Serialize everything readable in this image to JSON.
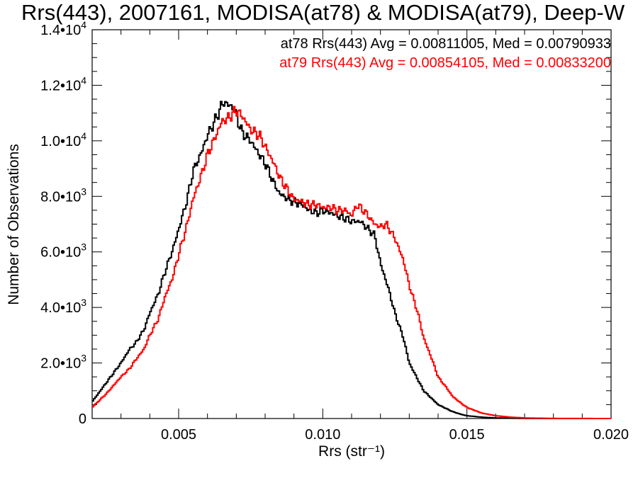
{
  "chart_data": {
    "type": "line",
    "title": "Rrs(443), 2007161, MODISA(at78) & MODISA(at79), Deep-W",
    "xlabel": "Rrs (str⁻¹)",
    "ylabel": "Number of Observations",
    "xlim": [
      0.002,
      0.02
    ],
    "ylim": [
      0,
      14000
    ],
    "x_ticks": [
      0.005,
      0.01,
      0.015,
      0.02
    ],
    "x_tick_labels": [
      "0.005",
      "0.010",
      "0.015",
      "0.020"
    ],
    "y_ticks": [
      0,
      2000,
      4000,
      6000,
      8000,
      10000,
      12000,
      14000
    ],
    "y_tick_labels": [
      {
        "mantissa": "0",
        "exp": ""
      },
      {
        "mantissa": "2.0•10",
        "exp": "3"
      },
      {
        "mantissa": "4.0•10",
        "exp": "3"
      },
      {
        "mantissa": "6.0•10",
        "exp": "3"
      },
      {
        "mantissa": "8.0•10",
        "exp": "3"
      },
      {
        "mantissa": "1.0•10",
        "exp": "4"
      },
      {
        "mantissa": "1.2•10",
        "exp": "4"
      },
      {
        "mantissa": "1.4•10",
        "exp": "4"
      }
    ],
    "grid": false,
    "legend_placement": "top-right",
    "series": [
      {
        "name": "at78 Rrs(443) Avg = 0.00811005, Med = 0.00790933",
        "color": "#000000",
        "x": [
          0.002,
          0.0025,
          0.003,
          0.0033,
          0.0035,
          0.0038,
          0.004,
          0.0043,
          0.0045,
          0.0048,
          0.005,
          0.0053,
          0.0055,
          0.0058,
          0.006,
          0.0063,
          0.0065,
          0.0066,
          0.0067,
          0.0068,
          0.0069,
          0.007,
          0.0072,
          0.0075,
          0.0078,
          0.008,
          0.0083,
          0.0085,
          0.0088,
          0.009,
          0.0093,
          0.0095,
          0.0098,
          0.01,
          0.0103,
          0.0105,
          0.0108,
          0.011,
          0.0113,
          0.0115,
          0.0118,
          0.012,
          0.0123,
          0.0125,
          0.0128,
          0.013,
          0.0133,
          0.0135,
          0.0138,
          0.014,
          0.0143,
          0.0145,
          0.0148,
          0.015,
          0.0155,
          0.016,
          0.017,
          0.018,
          0.02
        ],
        "values": [
          600,
          1300,
          2000,
          2500,
          2700,
          3200,
          3800,
          4500,
          5200,
          6100,
          6800,
          7900,
          8900,
          9600,
          10200,
          10800,
          11300,
          11400,
          11300,
          11250,
          11200,
          10900,
          10300,
          10000,
          9500,
          9200,
          8500,
          8100,
          7900,
          7800,
          7700,
          7500,
          7400,
          7500,
          7400,
          7300,
          7200,
          7100,
          7100,
          6900,
          6600,
          5600,
          4600,
          3800,
          2900,
          2000,
          1400,
          1000,
          700,
          500,
          350,
          250,
          150,
          100,
          50,
          20,
          5,
          0,
          0
        ]
      },
      {
        "name": "at79 Rrs(443) Avg = 0.00854105, Med = 0.00833200",
        "color": "#ff0000",
        "x": [
          0.002,
          0.0025,
          0.003,
          0.0033,
          0.0035,
          0.0038,
          0.004,
          0.0043,
          0.0045,
          0.0048,
          0.005,
          0.0053,
          0.0055,
          0.0058,
          0.006,
          0.0063,
          0.0065,
          0.0067,
          0.0069,
          0.007,
          0.0071,
          0.0072,
          0.0075,
          0.0078,
          0.008,
          0.0083,
          0.0085,
          0.0088,
          0.009,
          0.0093,
          0.0095,
          0.0098,
          0.01,
          0.0103,
          0.0105,
          0.0108,
          0.011,
          0.0112,
          0.0115,
          0.0118,
          0.012,
          0.0122,
          0.0125,
          0.0128,
          0.013,
          0.0133,
          0.0135,
          0.0138,
          0.014,
          0.0143,
          0.0145,
          0.0148,
          0.015,
          0.0155,
          0.016,
          0.0165,
          0.017,
          0.018,
          0.02
        ],
        "values": [
          400,
          900,
          1500,
          1800,
          2100,
          2500,
          3000,
          3600,
          4300,
          5100,
          5900,
          7000,
          7900,
          8800,
          9500,
          10200,
          10700,
          10800,
          11000,
          11100,
          11000,
          10900,
          10400,
          10200,
          9800,
          9200,
          8700,
          8200,
          7900,
          7800,
          7700,
          7700,
          7600,
          7600,
          7500,
          7500,
          7300,
          7700,
          7400,
          7000,
          6900,
          7000,
          6500,
          5700,
          4800,
          3800,
          2900,
          2100,
          1500,
          1100,
          800,
          550,
          400,
          200,
          100,
          50,
          20,
          5,
          0
        ]
      }
    ]
  }
}
